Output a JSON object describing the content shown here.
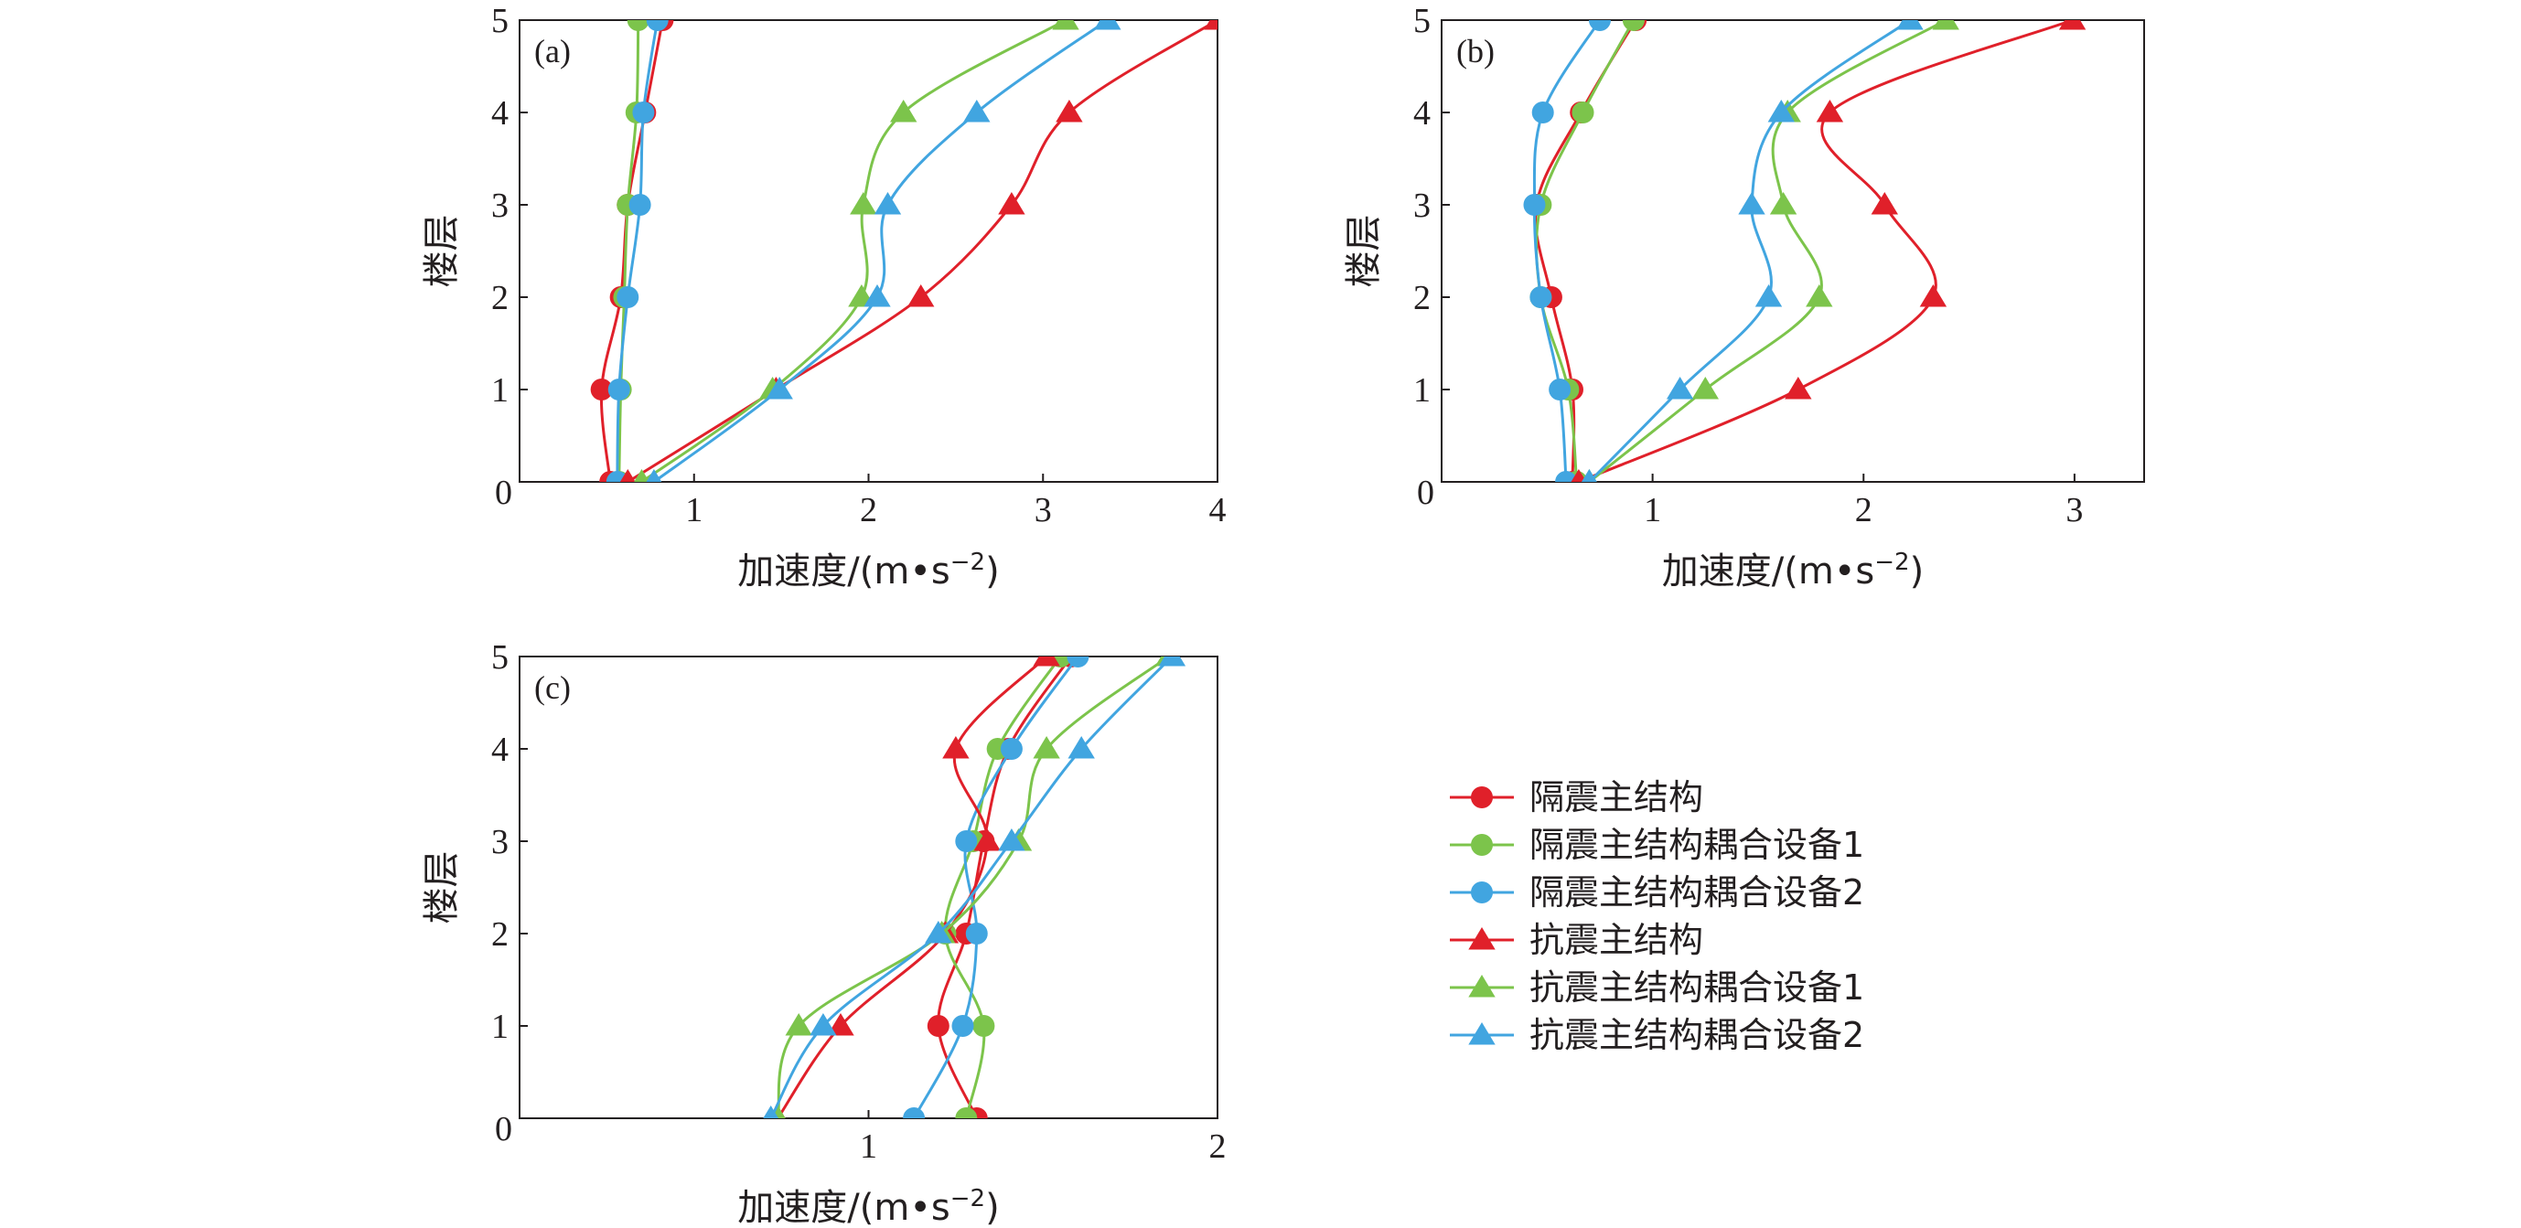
{
  "colors": {
    "red": "#e0202a",
    "green": "#7cc44b",
    "blue": "#41a5e0",
    "axis": "#231f20"
  },
  "series_meta": [
    {
      "name": "隔震主结构",
      "color": "red",
      "marker": "circle"
    },
    {
      "name": "隔震主结构耦合设备1",
      "color": "green",
      "marker": "circle"
    },
    {
      "name": "隔震主结构耦合设备2",
      "color": "blue",
      "marker": "circle"
    },
    {
      "name": "抗震主结构",
      "color": "red",
      "marker": "triangle"
    },
    {
      "name": "抗震主结构耦合设备1",
      "color": "green",
      "marker": "triangle"
    },
    {
      "name": "抗震主结构耦合设备2",
      "color": "blue",
      "marker": "triangle"
    }
  ],
  "chart_data": [
    {
      "type": "line",
      "panel_label": "(a)",
      "xlabel": "加速度/(m•s",
      "xlabel_sup": "−2",
      "xlabel_end": ")",
      "ylabel": "楼层",
      "xlim": [
        0,
        4
      ],
      "ylim": [
        0,
        5
      ],
      "xticks": [
        1,
        2,
        3,
        4
      ],
      "xtick_labels": [
        "1",
        "2",
        "3",
        "4"
      ],
      "yticks": [
        0,
        1,
        2,
        3,
        4,
        5
      ],
      "ytick_labels": [
        "0",
        "1",
        "2",
        "3",
        "4",
        "5"
      ],
      "y": [
        0,
        1,
        2,
        3,
        4,
        5
      ],
      "series": [
        {
          "name": "隔震主结构",
          "values": [
            0.52,
            0.47,
            0.58,
            0.62,
            0.72,
            0.82
          ]
        },
        {
          "name": "隔震主结构耦合设备1",
          "values": [
            0.57,
            0.58,
            0.6,
            0.62,
            0.67,
            0.68
          ]
        },
        {
          "name": "隔震主结构耦合设备2",
          "values": [
            0.56,
            0.57,
            0.62,
            0.69,
            0.71,
            0.79
          ]
        },
        {
          "name": "抗震主结构",
          "values": [
            0.62,
            1.47,
            2.3,
            2.82,
            3.15,
            4.0
          ]
        },
        {
          "name": "抗震主结构耦合设备1",
          "values": [
            0.7,
            1.45,
            1.96,
            1.97,
            2.2,
            3.13
          ]
        },
        {
          "name": "抗震主结构耦合设备2",
          "values": [
            0.77,
            1.49,
            2.05,
            2.11,
            2.62,
            3.37
          ]
        }
      ]
    },
    {
      "type": "line",
      "panel_label": "(b)",
      "xlabel": "加速度/(m•s",
      "xlabel_sup": "−2",
      "xlabel_end": ")",
      "ylabel": "楼层",
      "xlim": [
        0,
        3.33
      ],
      "ylim": [
        0,
        5
      ],
      "xticks": [
        1,
        2,
        3
      ],
      "xtick_labels": [
        "1",
        "2",
        "3"
      ],
      "yticks": [
        0,
        1,
        2,
        3,
        4,
        5
      ],
      "ytick_labels": [
        "0",
        "1",
        "2",
        "3",
        "4",
        "5"
      ],
      "y": [
        0,
        1,
        2,
        3,
        4,
        5
      ],
      "series": [
        {
          "name": "隔震主结构",
          "values": [
            0.62,
            0.62,
            0.52,
            0.45,
            0.66,
            0.92
          ]
        },
        {
          "name": "隔震主结构耦合设备1",
          "values": [
            0.64,
            0.6,
            0.47,
            0.47,
            0.67,
            0.91
          ]
        },
        {
          "name": "隔震主结构耦合设备2",
          "values": [
            0.59,
            0.56,
            0.47,
            0.44,
            0.48,
            0.75
          ]
        },
        {
          "name": "抗震主结构",
          "values": [
            0.65,
            1.69,
            2.33,
            2.1,
            1.84,
            2.99
          ]
        },
        {
          "name": "抗震主结构耦合设备1",
          "values": [
            0.7,
            1.25,
            1.79,
            1.62,
            1.64,
            2.39
          ]
        },
        {
          "name": "抗震主结构耦合设备2",
          "values": [
            0.7,
            1.13,
            1.55,
            1.47,
            1.61,
            2.22
          ]
        }
      ]
    },
    {
      "type": "line",
      "panel_label": "(c)",
      "xlabel": "加速度/(m•s",
      "xlabel_sup": "−2",
      "xlabel_end": ")",
      "ylabel": "楼层",
      "xlim": [
        0,
        2
      ],
      "ylim": [
        0,
        5
      ],
      "xticks": [
        1,
        2
      ],
      "xtick_labels": [
        "1",
        "2"
      ],
      "yticks": [
        0,
        1,
        2,
        3,
        4,
        5
      ],
      "ytick_labels": [
        "0",
        "1",
        "2",
        "3",
        "4",
        "5"
      ],
      "y": [
        0,
        1,
        2,
        3,
        4,
        5
      ],
      "series": [
        {
          "name": "隔震主结构",
          "values": [
            1.31,
            1.2,
            1.28,
            1.33,
            1.4,
            1.58
          ]
        },
        {
          "name": "隔震主结构耦合设备1",
          "values": [
            1.28,
            1.33,
            1.22,
            1.3,
            1.37,
            1.55
          ]
        },
        {
          "name": "隔震主结构耦合设备2",
          "values": [
            1.13,
            1.27,
            1.31,
            1.28,
            1.41,
            1.6
          ]
        },
        {
          "name": "抗震主结构",
          "values": [
            0.74,
            0.92,
            1.22,
            1.34,
            1.25,
            1.51
          ]
        },
        {
          "name": "抗震主结构耦合设备1",
          "values": [
            0.74,
            0.8,
            1.21,
            1.43,
            1.51,
            1.86
          ]
        },
        {
          "name": "抗震主结构耦合设备2",
          "values": [
            0.72,
            0.87,
            1.2,
            1.41,
            1.61,
            1.87
          ]
        }
      ]
    }
  ]
}
